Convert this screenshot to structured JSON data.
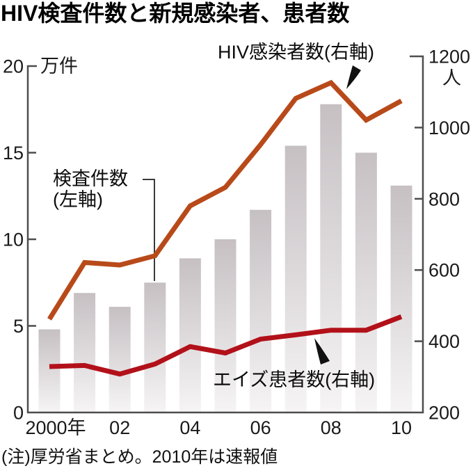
{
  "header": {
    "title": "HIV検査件数と新規感染者、患者数"
  },
  "footnote": "(注)厚労省まとめ。2010年は速報値",
  "chart_data": {
    "type": "bar+line",
    "categories": [
      "2000",
      "2001",
      "2002",
      "2003",
      "2004",
      "2005",
      "2006",
      "2007",
      "2008",
      "2009",
      "2010"
    ],
    "x_ticks": [
      {
        "index": 0,
        "label": "2000年"
      },
      {
        "index": 2,
        "label": "02"
      },
      {
        "index": 4,
        "label": "04"
      },
      {
        "index": 6,
        "label": "06"
      },
      {
        "index": 8,
        "label": "08"
      },
      {
        "index": 10,
        "label": "10"
      }
    ],
    "left_axis": {
      "label": "万件",
      "range": [
        0,
        20
      ],
      "ticks": [
        0,
        5,
        10,
        15,
        20
      ]
    },
    "right_axis": {
      "label": "人",
      "range": [
        200,
        1200
      ],
      "ticks": [
        200,
        400,
        600,
        800,
        1000,
        1200
      ]
    },
    "series": [
      {
        "name": "検査件数(左軸)",
        "type": "bar",
        "axis": "left",
        "unit": "万件",
        "values": [
          4.8,
          6.9,
          6.1,
          7.5,
          8.9,
          10.0,
          11.7,
          15.4,
          17.8,
          15.0,
          13.1
        ],
        "color_top": "#c6c0c3",
        "color_bottom": "#f6f4f5"
      },
      {
        "name": "HIV感染者数(右軸)",
        "type": "line",
        "axis": "right",
        "unit": "人",
        "color": "#b84a1a",
        "values": [
          462,
          621,
          614,
          640,
          780,
          832,
          952,
          1082,
          1126,
          1021,
          1075
        ]
      },
      {
        "name": "エイズ患者数(右軸)",
        "type": "line",
        "axis": "right",
        "unit": "人",
        "color": "#b2111a",
        "values": [
          329,
          332,
          308,
          336,
          385,
          367,
          406,
          418,
          431,
          431,
          469
        ]
      }
    ],
    "annotations": {
      "bar_label_line1": "検査件数",
      "bar_label_line2": "(左軸)",
      "hiv_label": "HIV感染者数(右軸)",
      "aids_label": "エイズ患者数(右軸)"
    },
    "grid": "off",
    "legend_position": "inline-annotations"
  }
}
